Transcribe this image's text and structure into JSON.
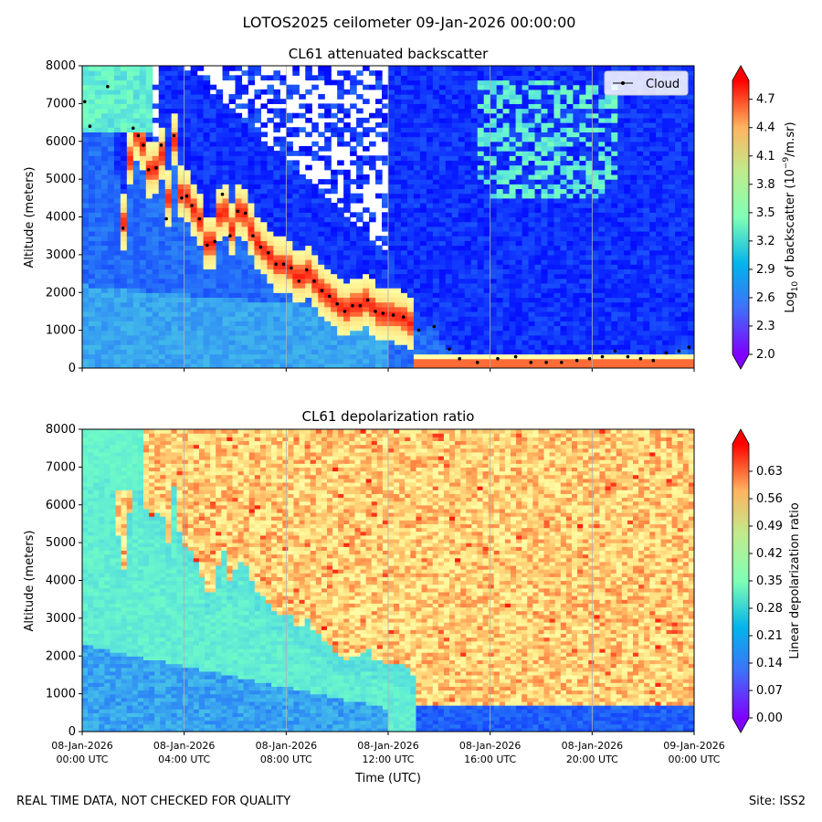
{
  "suptitle": "LOTOS2025 ceilometer 09-Jan-2026 00:00:00",
  "footer": {
    "left": "REAL TIME DATA, NOT CHECKED FOR QUALITY",
    "right": "Site: ISS2"
  },
  "colors": {
    "cloud_marker": "#000000",
    "grid": "#b0b0b0",
    "colormap": "rainbow"
  },
  "chart_data": [
    {
      "type": "heatmap",
      "title": "CL61 attenuated backscatter",
      "ylabel": "Altitude (meters)",
      "xlabel": "",
      "ylim": [
        0,
        8000
      ],
      "yticks": [
        "0",
        "1000",
        "2000",
        "3000",
        "4000",
        "5000",
        "6000",
        "7000",
        "8000"
      ],
      "xlim_hours": [
        0,
        24
      ],
      "colorbar": {
        "label": "Log10 of backscatter (10^-9/m.sr)",
        "range": [
          2.0,
          4.9
        ],
        "ticks": [
          "2.0",
          "2.3",
          "2.6",
          "2.9",
          "3.2",
          "3.5",
          "3.8",
          "4.1",
          "4.4",
          "4.7"
        ]
      },
      "legend": {
        "location": "top-right",
        "entries": [
          "Cloud"
        ]
      },
      "cloud_series": {
        "name": "Cloud",
        "x_hours": [
          0.1,
          0.3,
          1.0,
          1.6,
          2.0,
          2.2,
          2.4,
          2.6,
          2.9,
          3.1,
          3.3,
          3.6,
          3.9,
          4.1,
          4.3,
          4.6,
          4.9,
          5.2,
          5.5,
          5.8,
          6.1,
          6.4,
          6.7,
          7.0,
          7.3,
          7.6,
          7.9,
          8.2,
          8.5,
          8.8,
          9.1,
          9.4,
          9.7,
          10.0,
          10.3,
          10.6,
          10.9,
          11.2,
          11.5,
          11.8,
          12.2,
          12.6,
          13.2,
          13.8,
          14.4,
          14.8,
          15.5,
          16.3,
          17.0,
          17.6,
          18.2,
          18.8,
          19.4,
          19.9,
          20.4,
          20.9,
          21.4,
          21.9,
          22.4,
          22.9,
          23.4,
          23.8
        ],
        "y_m": [
          7050,
          6400,
          7450,
          3700,
          6350,
          6150,
          5900,
          5250,
          5300,
          5900,
          3950,
          6150,
          4500,
          4550,
          4300,
          3950,
          3250,
          3350,
          4600,
          3500,
          4150,
          4100,
          3500,
          3200,
          3050,
          2750,
          2750,
          2650,
          2300,
          2600,
          2300,
          2050,
          1900,
          1700,
          1500,
          1650,
          1650,
          1800,
          1500,
          1450,
          1400,
          1350,
          1000,
          1100,
          500,
          250,
          150,
          250,
          300,
          150,
          150,
          150,
          200,
          250,
          300,
          450,
          300,
          250,
          200,
          400,
          450,
          550
        ]
      }
    },
    {
      "type": "heatmap",
      "title": "CL61 depolarization ratio",
      "ylabel": "Altitude (meters)",
      "xlabel": "Time (UTC)",
      "ylim": [
        0,
        8000
      ],
      "yticks": [
        "0",
        "1000",
        "2000",
        "3000",
        "4000",
        "5000",
        "6000",
        "7000",
        "8000"
      ],
      "xlim_hours": [
        0,
        24
      ],
      "xticks": [
        {
          "l1": "08-Jan-2026",
          "l2": "00:00 UTC"
        },
        {
          "l1": "08-Jan-2026",
          "l2": "04:00 UTC"
        },
        {
          "l1": "08-Jan-2026",
          "l2": "08:00 UTC"
        },
        {
          "l1": "08-Jan-2026",
          "l2": "12:00 UTC"
        },
        {
          "l1": "08-Jan-2026",
          "l2": "16:00 UTC"
        },
        {
          "l1": "08-Jan-2026",
          "l2": "20:00 UTC"
        },
        {
          "l1": "09-Jan-2026",
          "l2": "00:00 UTC"
        }
      ],
      "colorbar": {
        "label": "Linear depolarization ratio",
        "range": [
          0.0,
          0.7
        ],
        "ticks": [
          "0.00",
          "0.07",
          "0.14",
          "0.21",
          "0.28",
          "0.35",
          "0.42",
          "0.49",
          "0.56",
          "0.63"
        ]
      }
    }
  ]
}
